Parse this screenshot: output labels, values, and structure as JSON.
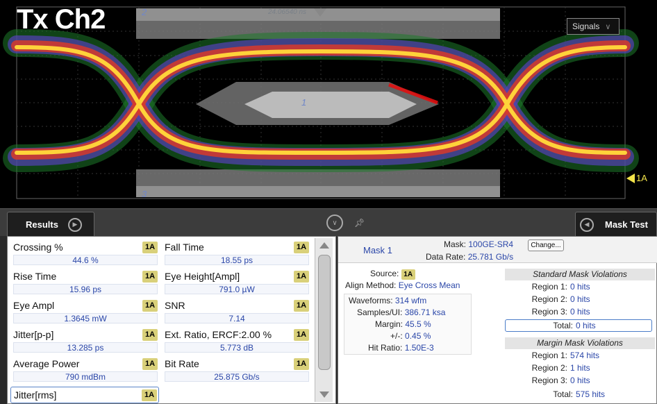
{
  "scope": {
    "title": "Tx Ch2",
    "signals_button": "Signals",
    "time_readout": "24.06540 ns",
    "ref_label": "1A",
    "region_labels": [
      "1",
      "2",
      "3"
    ]
  },
  "tabs": {
    "results": "Results",
    "mask_test": "Mask Test"
  },
  "results": {
    "items": [
      {
        "name": "Crossing %",
        "source": "1A",
        "value": "44.6 %"
      },
      {
        "name": "Fall Time",
        "source": "1A",
        "value": "18.55 ps"
      },
      {
        "name": "Rise Time",
        "source": "1A",
        "value": "15.96 ps"
      },
      {
        "name": "Eye Height[Ampl]",
        "source": "1A",
        "value": "791.0 µW"
      },
      {
        "name": "Eye Ampl",
        "source": "1A",
        "value": "1.3645 mW"
      },
      {
        "name": "SNR",
        "source": "1A",
        "value": "7.14"
      },
      {
        "name": "Jitter[p-p]",
        "source": "1A",
        "value": "13.285 ps"
      },
      {
        "name": "Ext. Ratio, ERCF:2.00 %",
        "source": "1A",
        "value": "5.773 dB"
      },
      {
        "name": "Average Power",
        "source": "1A",
        "value": "790 mdBm"
      },
      {
        "name": "Bit Rate",
        "source": "1A",
        "value": "25.875 Gb/s"
      },
      {
        "name": "Jitter[rms]",
        "source": "1A",
        "value": ""
      }
    ]
  },
  "mask": {
    "name": "Mask 1",
    "mask_label": "Mask:",
    "mask_value": "100GE-SR4",
    "change_button": "Change...",
    "data_rate_label": "Data Rate:",
    "data_rate_value": "25.781 Gb/s",
    "source_label": "Source:",
    "source_value": "1A",
    "align_label": "Align Method:",
    "align_value": "Eye Cross Mean",
    "stats": [
      {
        "label": "Waveforms:",
        "value": "314 wfm"
      },
      {
        "label": "Samples/UI:",
        "value": "386.71 ksa"
      },
      {
        "label": "Margin:",
        "value": "45.5 %"
      },
      {
        "label": "+/-:",
        "value": "0.45 %"
      },
      {
        "label": "Hit Ratio:",
        "value": "1.50E-3"
      }
    ],
    "standard": {
      "title": "Standard Mask Violations",
      "rows": [
        {
          "label": "Region 1:",
          "value": "0 hits"
        },
        {
          "label": "Region 2:",
          "value": "0 hits"
        },
        {
          "label": "Region 3:",
          "value": "0 hits"
        }
      ],
      "total_label": "Total:",
      "total_value": "0 hits"
    },
    "margin": {
      "title": "Margin Mask Violations",
      "rows": [
        {
          "label": "Region 1:",
          "value": "574 hits"
        },
        {
          "label": "Region 2:",
          "value": "1 hits"
        },
        {
          "label": "Region 3:",
          "value": "0 hits"
        }
      ],
      "total_label": "Total:",
      "total_value": "575 hits"
    }
  },
  "colors": {
    "accent_text": "#2a46a8",
    "badge": "#d9d07a",
    "ref_marker": "#f2e34a"
  }
}
